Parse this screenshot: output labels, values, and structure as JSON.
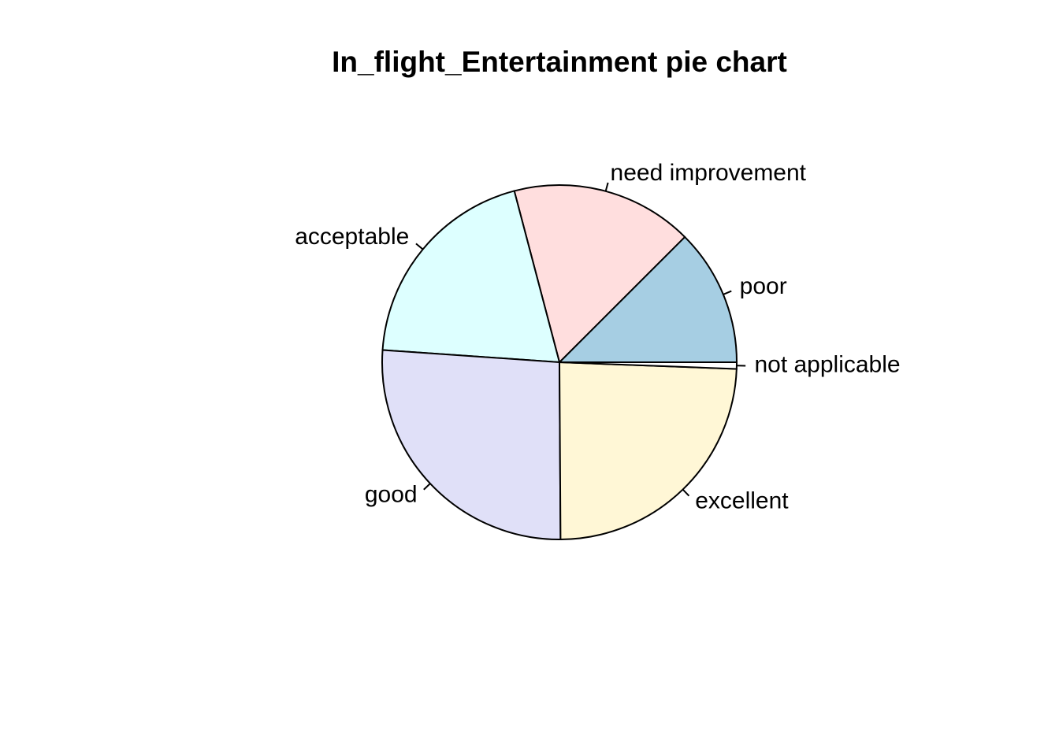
{
  "chart_data": {
    "type": "pie",
    "title": "In_flight_Entertainment pie chart",
    "categories": [
      "poor",
      "need improvement",
      "acceptable",
      "good",
      "excellent",
      "not applicable"
    ],
    "values": [
      12.5,
      16.6,
      19.8,
      26.2,
      24.3,
      0.6
    ],
    "colors": [
      "#A6CEE3",
      "#FFDEDE",
      "#DDFFFF",
      "#E0E0F8",
      "#FFF7D6",
      "#FFFFFF"
    ],
    "start_angle_deg": 0,
    "direction": "counterclockwise"
  }
}
